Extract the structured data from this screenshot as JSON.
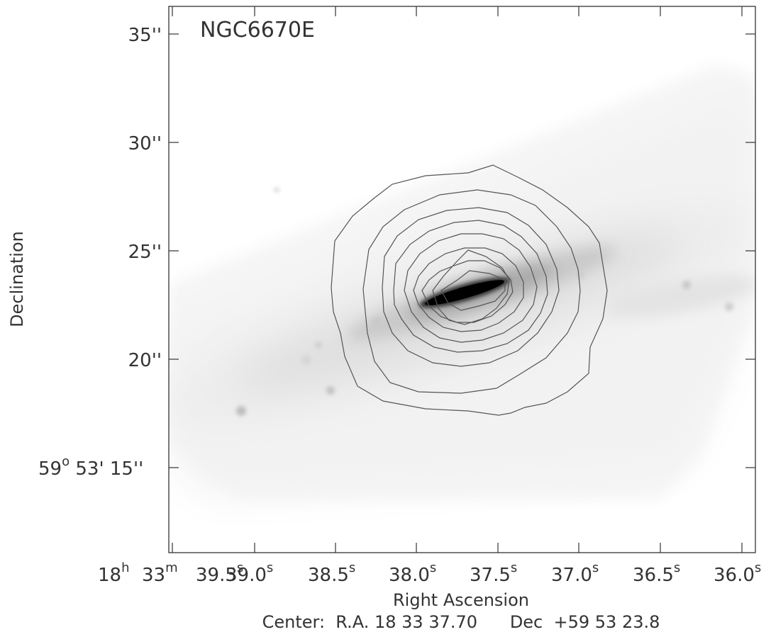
{
  "figure": {
    "object_label": "NGC6670E",
    "x_axis_title": "Right Ascension",
    "y_axis_title": "Declination",
    "center_line": "Center:  R.A. 18 33 37.70      Dec  +59 53 23.8",
    "ra_ticks": [
      {
        "text": "18",
        "sup": "h"
      },
      {
        "text": "33",
        "sup": "m"
      },
      {
        "text": "39.5",
        "sup": "s"
      },
      {
        "text": "39.0",
        "sup": "s"
      },
      {
        "text": "38.5",
        "sup": "s"
      },
      {
        "text": "38.0",
        "sup": "s"
      },
      {
        "text": "37.5",
        "sup": "s"
      },
      {
        "text": "37.0",
        "sup": "s"
      },
      {
        "text": "36.5",
        "sup": "s"
      },
      {
        "text": "36.0",
        "sup": "s"
      }
    ],
    "dec_ticks": [
      {
        "text": "35''"
      },
      {
        "text": "30''"
      },
      {
        "text": "25''"
      },
      {
        "text": "20''"
      },
      {
        "text": "59",
        "sup": "o",
        "rest": " 53' 15''"
      }
    ],
    "contour_levels": 9,
    "colors": {
      "contour": "#555555",
      "frame": "#333333",
      "galaxy_core": "#000000"
    }
  }
}
